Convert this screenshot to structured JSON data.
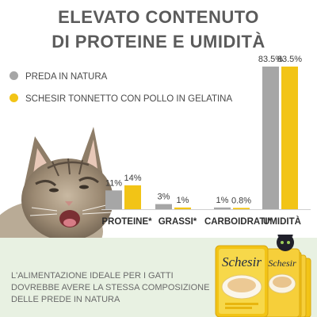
{
  "header": {
    "line1": "ELEVATO CONTENUTO",
    "line2": "DI PROTEINE E UMIDITÀ"
  },
  "legend": {
    "series1": "PREDA IN NATURA",
    "series2": "SCHESIR TONNETTO CON POLLO IN GELATINA"
  },
  "colors": {
    "series1": "#a6a6a6",
    "series2": "#f2c416",
    "title": "#5b5b5b",
    "footer_bg": "#e8f1e2"
  },
  "chart_data": {
    "type": "bar",
    "categories": [
      "PROTEINE*",
      "GRASSI*",
      "CARBOIDRATI*",
      "UMIDITÀ"
    ],
    "series": [
      {
        "name": "PREDA IN NATURA",
        "values": [
          11,
          3,
          1,
          83.5
        ]
      },
      {
        "name": "SCHESIR TONNETTO CON POLLO IN GELATINA",
        "values": [
          14,
          1,
          0.8,
          83.5
        ]
      }
    ],
    "labels": [
      [
        "11%",
        "3%",
        "1%",
        "83.5%"
      ],
      [
        "14%",
        "1%",
        "0.8%",
        "83.5%"
      ]
    ],
    "grid": false,
    "legend_position": "top-left"
  },
  "footer": {
    "lines": [
      "L'ALIMENTAZIONE IDEALE PER I GATTI",
      "DOVREBBE AVERE LA STESSA COMPOSIZIONE",
      "DELLE PREDE IN NATURA"
    ],
    "brand": "Schesir"
  }
}
